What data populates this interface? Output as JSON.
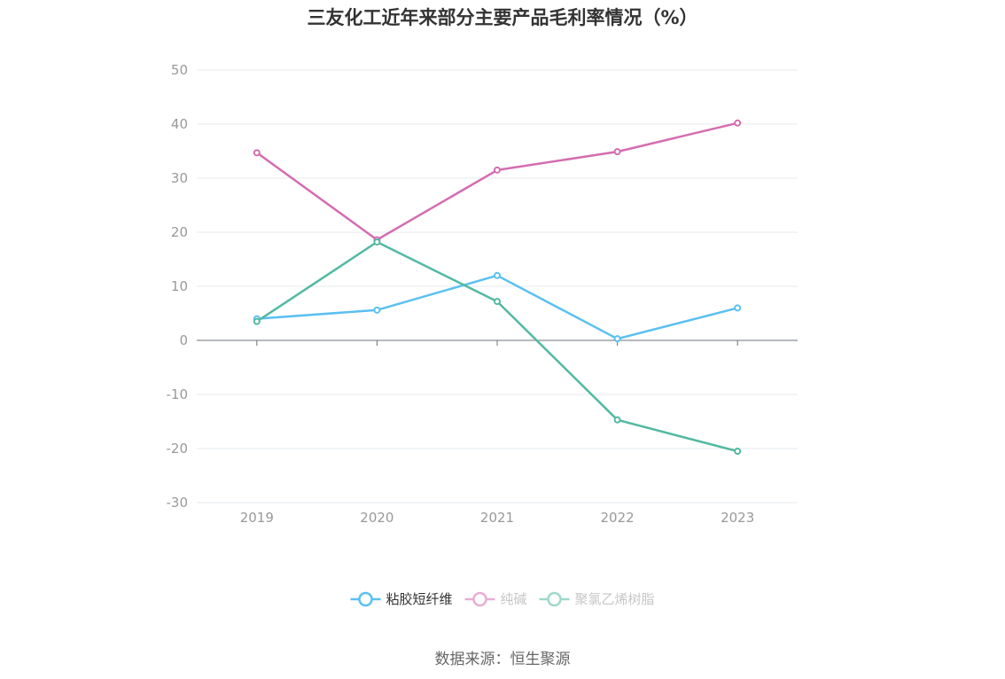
{
  "title": "三友化工近年来部分主要产品毛利率情况（%）",
  "source": "数据来源：恒生聚源",
  "chart_data": {
    "type": "line",
    "title": "三友化工近年来部分主要产品毛利率情况（%）",
    "categories": [
      "2019",
      "2020",
      "2021",
      "2022",
      "2023"
    ],
    "ylim": [
      -30,
      50
    ],
    "yticks": [
      50,
      40,
      30,
      20,
      10,
      0,
      -10,
      -20,
      -30
    ],
    "grid": true,
    "legend_position": "bottom",
    "series": [
      {
        "name": "粘胶短纤维",
        "color": "#5bc0f0",
        "values": [
          4.0,
          5.6,
          12.0,
          0.3,
          6.0
        ]
      },
      {
        "name": "纯碱",
        "color": "#d46db0",
        "values": [
          34.7,
          18.6,
          31.5,
          34.9,
          40.2
        ]
      },
      {
        "name": "聚氯乙烯树脂",
        "color": "#52b9a0",
        "values": [
          3.5,
          18.2,
          7.2,
          -14.7,
          -20.5
        ]
      }
    ]
  }
}
